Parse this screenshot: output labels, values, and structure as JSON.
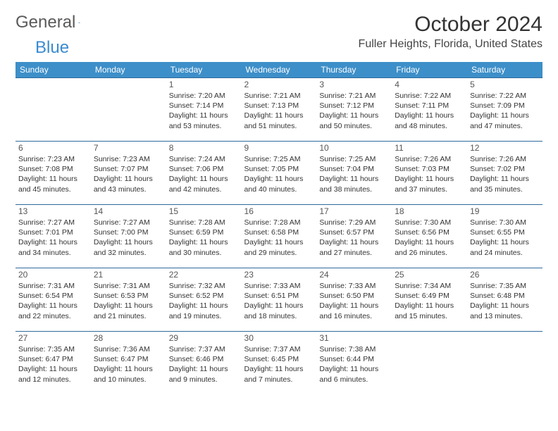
{
  "header": {
    "logo_part1": "General",
    "logo_part2": "Blue",
    "month_title": "October 2024",
    "location": "Fuller Heights, Florida, United States"
  },
  "colors": {
    "header_bg": "#3d8fc9",
    "header_text": "#ffffff",
    "row_border": "#2e6a9e",
    "logo_blue": "#3b8bd0",
    "logo_gray": "#5a5a5a",
    "body_text": "#333333"
  },
  "weekdays": [
    "Sunday",
    "Monday",
    "Tuesday",
    "Wednesday",
    "Thursday",
    "Friday",
    "Saturday"
  ],
  "weeks": [
    [
      null,
      null,
      {
        "n": "1",
        "sr": "7:20 AM",
        "ss": "7:14 PM",
        "dl": "11 hours and 53 minutes."
      },
      {
        "n": "2",
        "sr": "7:21 AM",
        "ss": "7:13 PM",
        "dl": "11 hours and 51 minutes."
      },
      {
        "n": "3",
        "sr": "7:21 AM",
        "ss": "7:12 PM",
        "dl": "11 hours and 50 minutes."
      },
      {
        "n": "4",
        "sr": "7:22 AM",
        "ss": "7:11 PM",
        "dl": "11 hours and 48 minutes."
      },
      {
        "n": "5",
        "sr": "7:22 AM",
        "ss": "7:09 PM",
        "dl": "11 hours and 47 minutes."
      }
    ],
    [
      {
        "n": "6",
        "sr": "7:23 AM",
        "ss": "7:08 PM",
        "dl": "11 hours and 45 minutes."
      },
      {
        "n": "7",
        "sr": "7:23 AM",
        "ss": "7:07 PM",
        "dl": "11 hours and 43 minutes."
      },
      {
        "n": "8",
        "sr": "7:24 AM",
        "ss": "7:06 PM",
        "dl": "11 hours and 42 minutes."
      },
      {
        "n": "9",
        "sr": "7:25 AM",
        "ss": "7:05 PM",
        "dl": "11 hours and 40 minutes."
      },
      {
        "n": "10",
        "sr": "7:25 AM",
        "ss": "7:04 PM",
        "dl": "11 hours and 38 minutes."
      },
      {
        "n": "11",
        "sr": "7:26 AM",
        "ss": "7:03 PM",
        "dl": "11 hours and 37 minutes."
      },
      {
        "n": "12",
        "sr": "7:26 AM",
        "ss": "7:02 PM",
        "dl": "11 hours and 35 minutes."
      }
    ],
    [
      {
        "n": "13",
        "sr": "7:27 AM",
        "ss": "7:01 PM",
        "dl": "11 hours and 34 minutes."
      },
      {
        "n": "14",
        "sr": "7:27 AM",
        "ss": "7:00 PM",
        "dl": "11 hours and 32 minutes."
      },
      {
        "n": "15",
        "sr": "7:28 AM",
        "ss": "6:59 PM",
        "dl": "11 hours and 30 minutes."
      },
      {
        "n": "16",
        "sr": "7:28 AM",
        "ss": "6:58 PM",
        "dl": "11 hours and 29 minutes."
      },
      {
        "n": "17",
        "sr": "7:29 AM",
        "ss": "6:57 PM",
        "dl": "11 hours and 27 minutes."
      },
      {
        "n": "18",
        "sr": "7:30 AM",
        "ss": "6:56 PM",
        "dl": "11 hours and 26 minutes."
      },
      {
        "n": "19",
        "sr": "7:30 AM",
        "ss": "6:55 PM",
        "dl": "11 hours and 24 minutes."
      }
    ],
    [
      {
        "n": "20",
        "sr": "7:31 AM",
        "ss": "6:54 PM",
        "dl": "11 hours and 22 minutes."
      },
      {
        "n": "21",
        "sr": "7:31 AM",
        "ss": "6:53 PM",
        "dl": "11 hours and 21 minutes."
      },
      {
        "n": "22",
        "sr": "7:32 AM",
        "ss": "6:52 PM",
        "dl": "11 hours and 19 minutes."
      },
      {
        "n": "23",
        "sr": "7:33 AM",
        "ss": "6:51 PM",
        "dl": "11 hours and 18 minutes."
      },
      {
        "n": "24",
        "sr": "7:33 AM",
        "ss": "6:50 PM",
        "dl": "11 hours and 16 minutes."
      },
      {
        "n": "25",
        "sr": "7:34 AM",
        "ss": "6:49 PM",
        "dl": "11 hours and 15 minutes."
      },
      {
        "n": "26",
        "sr": "7:35 AM",
        "ss": "6:48 PM",
        "dl": "11 hours and 13 minutes."
      }
    ],
    [
      {
        "n": "27",
        "sr": "7:35 AM",
        "ss": "6:47 PM",
        "dl": "11 hours and 12 minutes."
      },
      {
        "n": "28",
        "sr": "7:36 AM",
        "ss": "6:47 PM",
        "dl": "11 hours and 10 minutes."
      },
      {
        "n": "29",
        "sr": "7:37 AM",
        "ss": "6:46 PM",
        "dl": "11 hours and 9 minutes."
      },
      {
        "n": "30",
        "sr": "7:37 AM",
        "ss": "6:45 PM",
        "dl": "11 hours and 7 minutes."
      },
      {
        "n": "31",
        "sr": "7:38 AM",
        "ss": "6:44 PM",
        "dl": "11 hours and 6 minutes."
      },
      null,
      null
    ]
  ],
  "labels": {
    "sunrise": "Sunrise:",
    "sunset": "Sunset:",
    "daylight": "Daylight:"
  }
}
